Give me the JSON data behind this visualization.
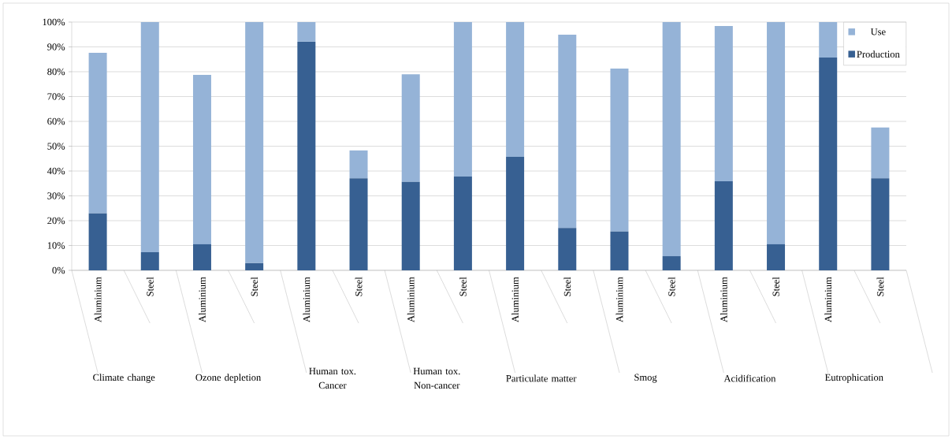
{
  "chart_data": {
    "type": "bar",
    "stacked": true,
    "categories": [
      "Aluminium",
      "Steel",
      "Aluminium",
      "Steel",
      "Aluminium",
      "Steel",
      "Aluminium",
      "Steel",
      "Aluminium",
      "Steel",
      "Aluminium",
      "Steel",
      "Aluminium",
      "Steel",
      "Aluminium",
      "Steel"
    ],
    "series": [
      {
        "name": "Production",
        "color": "#376092",
        "values": [
          22.9,
          7.3,
          10.5,
          2.9,
          92.1,
          37.1,
          35.6,
          37.8,
          45.7,
          17.1,
          15.6,
          5.7,
          35.9,
          10.5,
          85.7,
          37.1
        ]
      },
      {
        "name": "Use",
        "color": "#95b3d7",
        "values": [
          64.7,
          92.7,
          68.2,
          97.1,
          7.9,
          11.2,
          43.4,
          62.2,
          54.3,
          77.8,
          65.7,
          94.3,
          62.5,
          89.5,
          14.3,
          20.4
        ]
      }
    ],
    "annotations": [
      "Climate change",
      "Ozone depletion",
      "Human tox. Cancer",
      "Human tox. Non-cancer",
      "Particulate matter",
      "Smog",
      "Acidification",
      "Eutrophication"
    ],
    "ylim": [
      0,
      100
    ],
    "yticks": [
      {
        "value": 0,
        "label": "0%"
      },
      {
        "value": 10,
        "label": "10%"
      },
      {
        "value": 20,
        "label": "20%"
      },
      {
        "value": 30,
        "label": "30%"
      },
      {
        "value": 40,
        "label": "40%"
      },
      {
        "value": 50,
        "label": "50%"
      },
      {
        "value": 60,
        "label": "60%"
      },
      {
        "value": 70,
        "label": "70%"
      },
      {
        "value": 80,
        "label": "80%"
      },
      {
        "value": 90,
        "label": "90%"
      },
      {
        "value": 100,
        "label": "100%"
      }
    ],
    "grid": "y",
    "legend": "top right"
  }
}
